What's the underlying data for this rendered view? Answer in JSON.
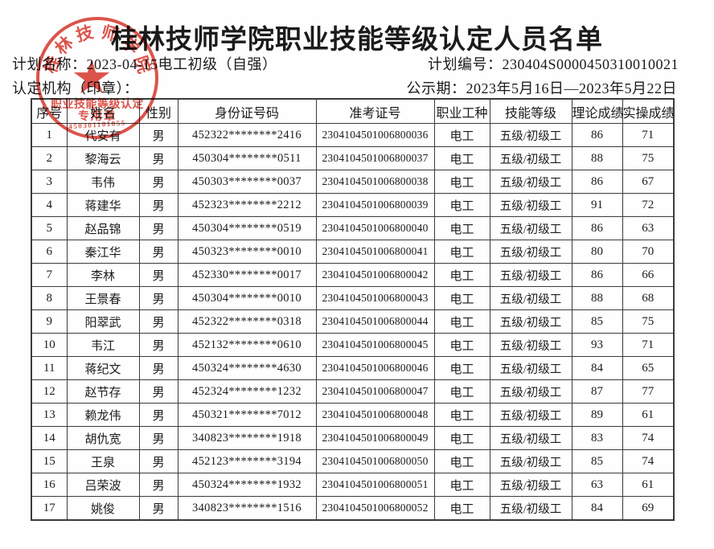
{
  "page": {
    "title": "桂林技师学院职业技能等级认定人员名单"
  },
  "meta": {
    "plan_name_label": "计划名称：",
    "plan_name": "2023-04-15电工初级（自强）",
    "plan_no_label": "计划编号：",
    "plan_no": "230404S0000450310010021",
    "org_label": "认定机构（印章）：",
    "publicity_label": "公示期：",
    "publicity_period": "2023年5月16日—2023年5月22日"
  },
  "stamp": {
    "arc_text": "桂林技师学院",
    "line1": "职业技能等级认定",
    "line2": "专用章",
    "serial": "450301101855",
    "star": "★",
    "color": "#d73c32"
  },
  "table": {
    "headers": [
      "序号",
      "姓名",
      "性别",
      "身份证号码",
      "准考证号",
      "职业工种",
      "技能等级",
      "理论成绩",
      "实操成绩"
    ],
    "rows": [
      [
        "1",
        "代安有",
        "男",
        "452322********2416",
        "2304104501006800036",
        "电工",
        "五级/初级工",
        "86",
        "71"
      ],
      [
        "2",
        "黎海云",
        "男",
        "450304********0511",
        "2304104501006800037",
        "电工",
        "五级/初级工",
        "88",
        "75"
      ],
      [
        "3",
        "韦伟",
        "男",
        "450303********0037",
        "2304104501006800038",
        "电工",
        "五级/初级工",
        "86",
        "67"
      ],
      [
        "4",
        "蒋建华",
        "男",
        "452323********2212",
        "2304104501006800039",
        "电工",
        "五级/初级工",
        "91",
        "72"
      ],
      [
        "5",
        "赵品锦",
        "男",
        "450304********0519",
        "2304104501006800040",
        "电工",
        "五级/初级工",
        "86",
        "63"
      ],
      [
        "6",
        "秦江华",
        "男",
        "450323********0010",
        "2304104501006800041",
        "电工",
        "五级/初级工",
        "80",
        "70"
      ],
      [
        "7",
        "李林",
        "男",
        "452330********0017",
        "2304104501006800042",
        "电工",
        "五级/初级工",
        "86",
        "66"
      ],
      [
        "8",
        "王景春",
        "男",
        "450304********0010",
        "2304104501006800043",
        "电工",
        "五级/初级工",
        "88",
        "68"
      ],
      [
        "9",
        "阳翠武",
        "男",
        "452322********0318",
        "2304104501006800044",
        "电工",
        "五级/初级工",
        "85",
        "75"
      ],
      [
        "10",
        "韦江",
        "男",
        "452132********0610",
        "2304104501006800045",
        "电工",
        "五级/初级工",
        "93",
        "71"
      ],
      [
        "11",
        "蒋纪文",
        "男",
        "450324********4630",
        "2304104501006800046",
        "电工",
        "五级/初级工",
        "84",
        "65"
      ],
      [
        "12",
        "赵节存",
        "男",
        "452324********1232",
        "2304104501006800047",
        "电工",
        "五级/初级工",
        "87",
        "77"
      ],
      [
        "13",
        "赖龙伟",
        "男",
        "450321********7012",
        "2304104501006800048",
        "电工",
        "五级/初级工",
        "89",
        "61"
      ],
      [
        "14",
        "胡仇宽",
        "男",
        "340823********1918",
        "2304104501006800049",
        "电工",
        "五级/初级工",
        "83",
        "74"
      ],
      [
        "15",
        "王泉",
        "男",
        "452123********3194",
        "2304104501006800050",
        "电工",
        "五级/初级工",
        "85",
        "74"
      ],
      [
        "16",
        "吕荣波",
        "男",
        "450324********1932",
        "2304104501006800051",
        "电工",
        "五级/初级工",
        "63",
        "61"
      ],
      [
        "17",
        "姚俊",
        "男",
        "340823********1516",
        "2304104501006800052",
        "电工",
        "五级/初级工",
        "84",
        "69"
      ]
    ]
  }
}
